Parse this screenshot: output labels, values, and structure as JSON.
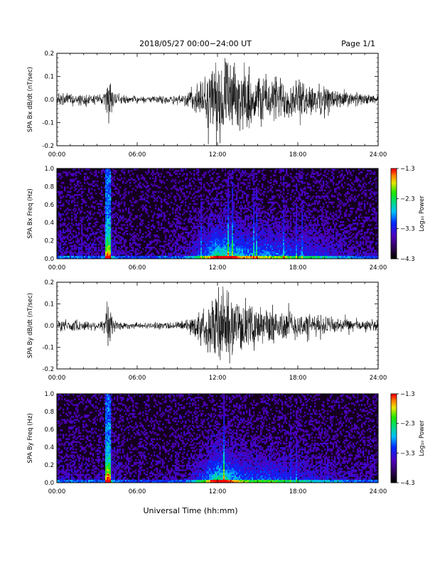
{
  "header": {
    "title": "2018/05/27  00:00−24:00 UT",
    "page": "Page 1/1"
  },
  "footer": {
    "xlabel": "Universal Time (hh:mm)"
  },
  "colorbar": {
    "label": "Log₁₀ Power",
    "ticks": [
      "−1.3",
      "−2.3",
      "−3.3",
      "−4.3"
    ]
  },
  "chart_data": [
    {
      "type": "line",
      "ylabel": "SPA Bx dB/dt (nT/sec)",
      "xlim": [
        0,
        24
      ],
      "ylim": [
        -0.2,
        0.2
      ],
      "x_ticks": [
        "00:00",
        "06:00",
        "12:00",
        "18:00",
        "24:00"
      ],
      "y_ticks": [
        "-0.2",
        "-0.1",
        "0.0",
        "0.1",
        "0.2"
      ],
      "envelope": [
        [
          0.0,
          0.03
        ],
        [
          1.0,
          0.03
        ],
        [
          2.0,
          0.03
        ],
        [
          3.0,
          0.025
        ],
        [
          3.6,
          0.03
        ],
        [
          3.8,
          0.14
        ],
        [
          4.0,
          0.1
        ],
        [
          4.3,
          0.03
        ],
        [
          5.0,
          0.02
        ],
        [
          6.0,
          0.015
        ],
        [
          7.0,
          0.015
        ],
        [
          8.0,
          0.02
        ],
        [
          9.0,
          0.025
        ],
        [
          9.5,
          0.03
        ],
        [
          10.0,
          0.05
        ],
        [
          10.5,
          0.08
        ],
        [
          11.0,
          0.11
        ],
        [
          11.5,
          0.16
        ],
        [
          12.0,
          0.22
        ],
        [
          12.5,
          0.2
        ],
        [
          13.0,
          0.18
        ],
        [
          13.5,
          0.16
        ],
        [
          14.0,
          0.14
        ],
        [
          15.0,
          0.13
        ],
        [
          16.0,
          0.12
        ],
        [
          17.0,
          0.11
        ],
        [
          18.0,
          0.09
        ],
        [
          19.0,
          0.08
        ],
        [
          20.0,
          0.07
        ],
        [
          21.0,
          0.05
        ],
        [
          22.0,
          0.035
        ],
        [
          23.0,
          0.025
        ],
        [
          24.0,
          0.02
        ]
      ]
    },
    {
      "type": "heatmap",
      "ylabel": "SPA Bx Freq (Hz)",
      "xlim": [
        0,
        24
      ],
      "ylim": [
        0,
        1.0
      ],
      "zlim": [
        -4.3,
        -1.3
      ],
      "x_ticks": [
        "00:00",
        "06:00",
        "12:00",
        "18:00",
        "24:00"
      ],
      "y_ticks": [
        "0.0",
        "0.2",
        "0.4",
        "0.6",
        "0.8",
        "1.0"
      ]
    },
    {
      "type": "line",
      "ylabel": "SPA By dB/dt (nT/sec)",
      "xlim": [
        0,
        24
      ],
      "ylim": [
        -0.2,
        0.2
      ],
      "x_ticks": [
        "00:00",
        "06:00",
        "12:00",
        "18:00",
        "24:00"
      ],
      "y_ticks": [
        "-0.2",
        "-0.1",
        "0.0",
        "0.1",
        "0.2"
      ],
      "envelope": [
        [
          0.0,
          0.03
        ],
        [
          1.0,
          0.03
        ],
        [
          2.0,
          0.025
        ],
        [
          3.0,
          0.025
        ],
        [
          3.6,
          0.03
        ],
        [
          3.8,
          0.17
        ],
        [
          4.0,
          0.1
        ],
        [
          4.3,
          0.03
        ],
        [
          5.0,
          0.02
        ],
        [
          6.0,
          0.015
        ],
        [
          7.0,
          0.015
        ],
        [
          8.0,
          0.02
        ],
        [
          9.0,
          0.02
        ],
        [
          9.5,
          0.025
        ],
        [
          10.0,
          0.04
        ],
        [
          10.5,
          0.07
        ],
        [
          11.0,
          0.1
        ],
        [
          11.5,
          0.15
        ],
        [
          12.0,
          0.22
        ],
        [
          12.5,
          0.2
        ],
        [
          13.0,
          0.16
        ],
        [
          13.5,
          0.13
        ],
        [
          14.0,
          0.11
        ],
        [
          15.0,
          0.1
        ],
        [
          16.0,
          0.1
        ],
        [
          17.0,
          0.09
        ],
        [
          18.0,
          0.07
        ],
        [
          19.0,
          0.06
        ],
        [
          20.0,
          0.05
        ],
        [
          21.0,
          0.04
        ],
        [
          22.0,
          0.03
        ],
        [
          23.0,
          0.025
        ],
        [
          24.0,
          0.025
        ]
      ]
    },
    {
      "type": "heatmap",
      "ylabel": "SPA By Freq (Hz)",
      "xlim": [
        0,
        24
      ],
      "ylim": [
        0,
        1.0
      ],
      "zlim": [
        -4.3,
        -1.3
      ],
      "x_ticks": [
        "00:00",
        "06:00",
        "12:00",
        "18:00",
        "24:00"
      ],
      "y_ticks": [
        "0.0",
        "0.2",
        "0.4",
        "0.6",
        "0.8",
        "1.0"
      ]
    }
  ]
}
